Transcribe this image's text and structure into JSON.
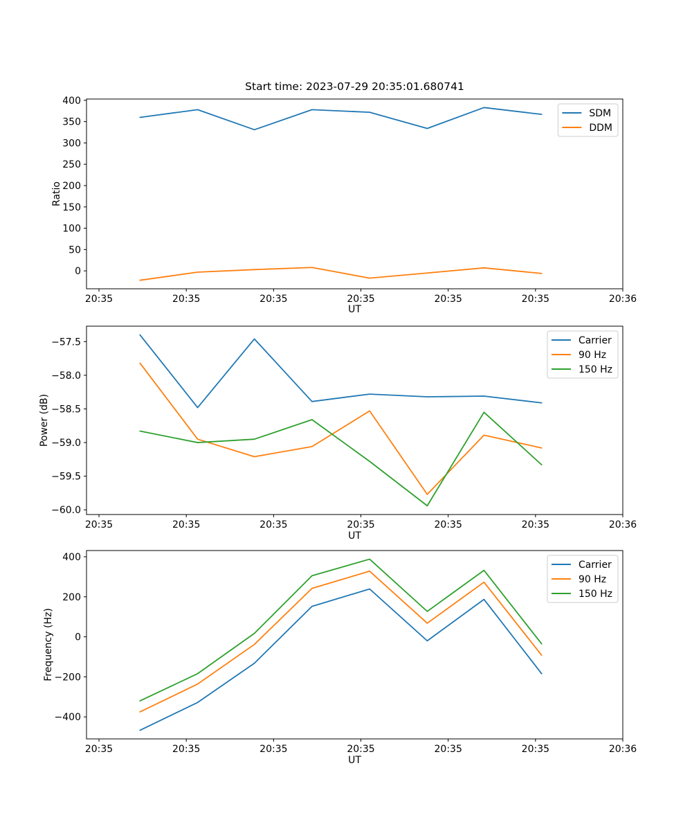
{
  "figure_title": "Start time: 2023-07-29 20:35:01.680741",
  "colors": {
    "blue": "#1f77b4",
    "orange": "#ff7f0e",
    "green": "#2ca02c"
  },
  "chart_data": [
    {
      "type": "line",
      "title": "Start time: 2023-07-29 20:35:01.680741",
      "xlabel": "UT",
      "ylabel": "Ratio",
      "grid": false,
      "legend_position": "upper right",
      "xlim_seconds": [
        -1.43,
        60
      ],
      "ylim": [
        -42,
        403
      ],
      "x_seconds_after_20_35_00": [
        4.7,
        11.3,
        17.8,
        24.4,
        31.0,
        37.6,
        44.1,
        50.7
      ],
      "xticks": [
        {
          "t": 0,
          "label": "20:35"
        },
        {
          "t": 10,
          "label": "20:35"
        },
        {
          "t": 20,
          "label": "20:35"
        },
        {
          "t": 30,
          "label": "20:35"
        },
        {
          "t": 40,
          "label": "20:35"
        },
        {
          "t": 50,
          "label": "20:35"
        },
        {
          "t": 60,
          "label": "20:36"
        }
      ],
      "yticks": [
        {
          "v": 0,
          "label": "0"
        },
        {
          "v": 50,
          "label": "50"
        },
        {
          "v": 100,
          "label": "100"
        },
        {
          "v": 150,
          "label": "150"
        },
        {
          "v": 200,
          "label": "200"
        },
        {
          "v": 250,
          "label": "250"
        },
        {
          "v": 300,
          "label": "300"
        },
        {
          "v": 350,
          "label": "350"
        },
        {
          "v": 400,
          "label": "400"
        }
      ],
      "series": [
        {
          "name": "SDM",
          "color": "#1f77b4",
          "values": [
            360,
            378,
            331,
            378,
            372,
            334,
            383,
            367
          ]
        },
        {
          "name": "DDM",
          "color": "#ff7f0e",
          "values": [
            -22,
            -3,
            3,
            8,
            -17,
            -5,
            7,
            -6
          ]
        }
      ]
    },
    {
      "type": "line",
      "title": "",
      "xlabel": "UT",
      "ylabel": "Power (dB)",
      "grid": false,
      "legend_position": "upper right",
      "xlim_seconds": [
        -1.43,
        60
      ],
      "ylim": [
        -60.07,
        -57.27
      ],
      "x_seconds_after_20_35_00": [
        4.7,
        11.3,
        17.8,
        24.4,
        31.0,
        37.6,
        44.1,
        50.7
      ],
      "xticks": [
        {
          "t": 0,
          "label": "20:35"
        },
        {
          "t": 10,
          "label": "20:35"
        },
        {
          "t": 20,
          "label": "20:35"
        },
        {
          "t": 30,
          "label": "20:35"
        },
        {
          "t": 40,
          "label": "20:35"
        },
        {
          "t": 50,
          "label": "20:35"
        },
        {
          "t": 60,
          "label": "20:36"
        }
      ],
      "yticks": [
        {
          "v": -60.0,
          "label": "−60.0"
        },
        {
          "v": -59.5,
          "label": "−59.5"
        },
        {
          "v": -59.0,
          "label": "−59.0"
        },
        {
          "v": -58.5,
          "label": "−58.5"
        },
        {
          "v": -58.0,
          "label": "−58.0"
        },
        {
          "v": -57.5,
          "label": "−57.5"
        }
      ],
      "series": [
        {
          "name": "Carrier",
          "color": "#1f77b4",
          "values": [
            -57.4,
            -58.48,
            -57.46,
            -58.39,
            -58.28,
            -58.32,
            -58.31,
            -58.41
          ]
        },
        {
          "name": "90 Hz",
          "color": "#ff7f0e",
          "values": [
            -57.82,
            -58.95,
            -59.21,
            -59.06,
            -58.53,
            -59.77,
            -58.89,
            -59.08
          ]
        },
        {
          "name": "150 Hz",
          "color": "#2ca02c",
          "values": [
            -58.83,
            -59.0,
            -58.95,
            -58.66,
            -59.28,
            -59.94,
            -58.55,
            -59.33
          ]
        }
      ]
    },
    {
      "type": "line",
      "title": "",
      "xlabel": "UT",
      "ylabel": "Frequency (Hz)",
      "grid": false,
      "legend_position": "upper right",
      "xlim_seconds": [
        -1.43,
        60
      ],
      "ylim": [
        -510,
        431
      ],
      "x_seconds_after_20_35_00": [
        4.7,
        11.3,
        17.8,
        24.4,
        31.0,
        37.6,
        44.1,
        50.7
      ],
      "xticks": [
        {
          "t": 0,
          "label": "20:35"
        },
        {
          "t": 10,
          "label": "20:35"
        },
        {
          "t": 20,
          "label": "20:35"
        },
        {
          "t": 30,
          "label": "20:35"
        },
        {
          "t": 40,
          "label": "20:35"
        },
        {
          "t": 50,
          "label": "20:35"
        },
        {
          "t": 60,
          "label": "20:36"
        }
      ],
      "yticks": [
        {
          "v": -400,
          "label": "−400"
        },
        {
          "v": -200,
          "label": "−200"
        },
        {
          "v": 0,
          "label": "0"
        },
        {
          "v": 200,
          "label": "200"
        },
        {
          "v": 400,
          "label": "400"
        }
      ],
      "series": [
        {
          "name": "Carrier",
          "color": "#1f77b4",
          "values": [
            -467,
            -328,
            -132,
            152,
            239,
            -20,
            187,
            -184
          ]
        },
        {
          "name": "90 Hz",
          "color": "#ff7f0e",
          "values": [
            -375,
            -236,
            -38,
            242,
            328,
            68,
            273,
            -92
          ]
        },
        {
          "name": "150 Hz",
          "color": "#2ca02c",
          "values": [
            -320,
            -184,
            17,
            305,
            388,
            127,
            332,
            -35
          ]
        }
      ]
    }
  ]
}
